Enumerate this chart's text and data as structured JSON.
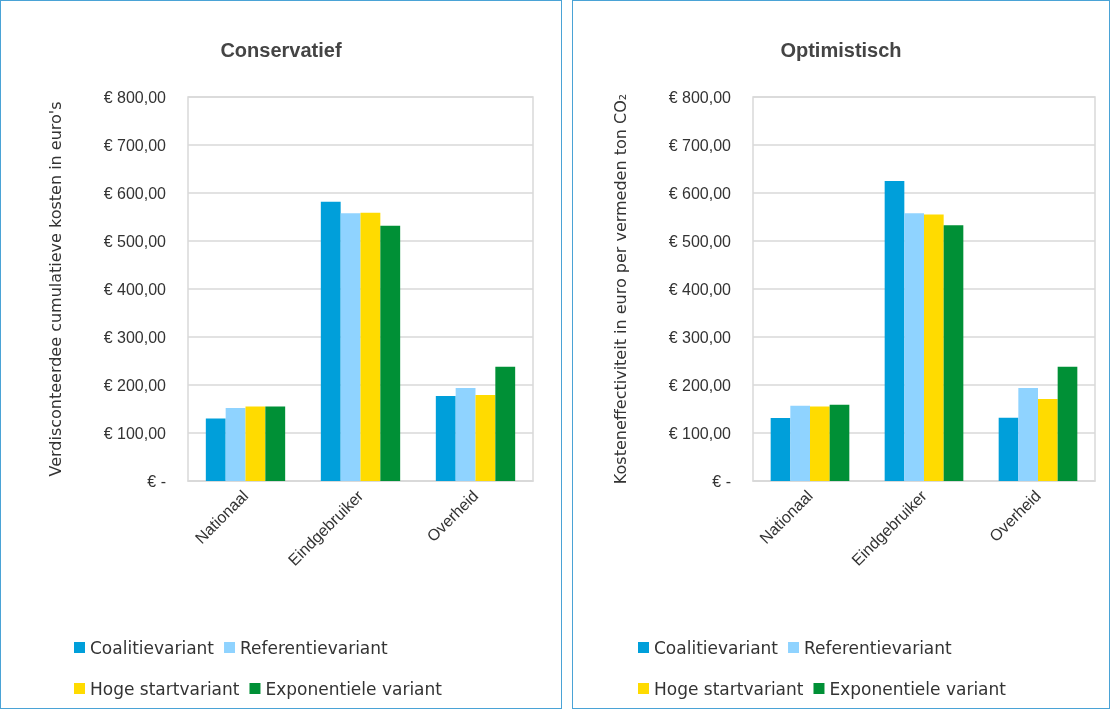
{
  "chart_data": [
    {
      "type": "bar",
      "title": "Conservatief",
      "ylabel": "Verdisconteerdee cumulatieve kosten in euro's",
      "categories": [
        "Nationaal",
        "Eindgebruiker",
        "Overheid"
      ],
      "series": [
        {
          "name": "Coalitievariant",
          "color": "#009fda",
          "values": [
            130,
            582,
            177
          ]
        },
        {
          "name": "Referentievariant",
          "color": "#8fd3ff",
          "values": [
            152,
            558,
            194
          ]
        },
        {
          "name": "Hoge startvariant",
          "color": "#ffdb00",
          "values": [
            155,
            559,
            179
          ]
        },
        {
          "name": "Exponentiele variant",
          "color": "#009036",
          "values": [
            155,
            532,
            238
          ]
        }
      ],
      "ylim": [
        0,
        800
      ],
      "yticks": [
        {
          "value": 0,
          "label": "€ -"
        },
        {
          "value": 100,
          "label": "€ 100,00"
        },
        {
          "value": 200,
          "label": "€ 200,00"
        },
        {
          "value": 300,
          "label": "€ 300,00"
        },
        {
          "value": 400,
          "label": "€ 400,00"
        },
        {
          "value": 500,
          "label": "€ 500,00"
        },
        {
          "value": 600,
          "label": "€ 600,00"
        },
        {
          "value": 700,
          "label": "€ 700,00"
        },
        {
          "value": 800,
          "label": "€ 800,00"
        }
      ],
      "grid": "y",
      "legend": "bottom"
    },
    {
      "type": "bar",
      "title": "Optimistisch",
      "ylabel": "Kosteneffectiviteit in euro per vermeden ton CO₂",
      "categories": [
        "Nationaal",
        "Eindgebruiker",
        "Overheid"
      ],
      "series": [
        {
          "name": "Coalitievariant",
          "color": "#009fda",
          "values": [
            131,
            625,
            132
          ]
        },
        {
          "name": "Referentievariant",
          "color": "#8fd3ff",
          "values": [
            157,
            558,
            194
          ]
        },
        {
          "name": "Hoge startvariant",
          "color": "#ffdb00",
          "values": [
            155,
            555,
            171
          ]
        },
        {
          "name": "Exponentiele variant",
          "color": "#009036",
          "values": [
            159,
            533,
            238
          ]
        }
      ],
      "ylim": [
        0,
        800
      ],
      "yticks": [
        {
          "value": 0,
          "label": "€ -"
        },
        {
          "value": 100,
          "label": "€ 100,00"
        },
        {
          "value": 200,
          "label": "€ 200,00"
        },
        {
          "value": 300,
          "label": "€ 300,00"
        },
        {
          "value": 400,
          "label": "€ 400,00"
        },
        {
          "value": 500,
          "label": "€ 500,00"
        },
        {
          "value": 600,
          "label": "€ 600,00"
        },
        {
          "value": 700,
          "label": "€ 700,00"
        },
        {
          "value": 800,
          "label": "€ 800,00"
        }
      ],
      "grid": "y",
      "legend": "bottom"
    }
  ]
}
